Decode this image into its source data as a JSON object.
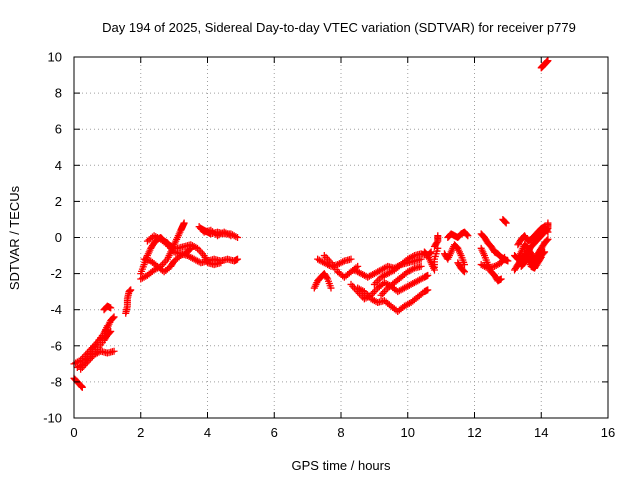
{
  "chart_data": {
    "type": "scatter",
    "title": "Day 194 of 2025, Sidereal Day-to-day VTEC variation (SDTVAR) for receiver p779",
    "xlabel": "GPS time / hours",
    "ylabel": "SDTVAR / TECUs",
    "xlim": [
      0,
      16
    ],
    "ylim": [
      -10,
      10
    ],
    "x_ticks": [
      "0",
      "2",
      "4",
      "6",
      "8",
      "10",
      "12",
      "14",
      "16"
    ],
    "y_ticks": [
      "10",
      "8",
      "6",
      "4",
      "2",
      "0",
      "-2",
      "-4",
      "-6",
      "-8",
      "-10"
    ],
    "grid": true,
    "marker": "plus",
    "color": "#ff0000",
    "traces": [
      [
        [
          0.0,
          -7.8
        ],
        [
          0.1,
          -8.0
        ],
        [
          0.2,
          -8.2
        ],
        [
          0.25,
          -8.3
        ]
      ],
      [
        [
          0.0,
          -7.0
        ],
        [
          0.2,
          -6.8
        ],
        [
          0.4,
          -6.4
        ],
        [
          0.6,
          -6.0
        ],
        [
          0.8,
          -5.6
        ],
        [
          1.0,
          -5.0
        ],
        [
          1.1,
          -4.6
        ],
        [
          1.2,
          -4.4
        ]
      ],
      [
        [
          0.1,
          -7.2
        ],
        [
          0.3,
          -7.0
        ],
        [
          0.5,
          -6.6
        ],
        [
          0.7,
          -6.2
        ],
        [
          0.9,
          -5.7
        ],
        [
          1.0,
          -5.4
        ],
        [
          1.1,
          -5.2
        ]
      ],
      [
        [
          0.2,
          -7.3
        ],
        [
          0.4,
          -6.9
        ],
        [
          0.6,
          -6.5
        ],
        [
          0.8,
          -6.3
        ],
        [
          1.0,
          -6.4
        ],
        [
          1.2,
          -6.3
        ]
      ],
      [
        [
          0.3,
          -6.9
        ],
        [
          0.5,
          -6.3
        ],
        [
          0.7,
          -5.8
        ],
        [
          0.9,
          -5.3
        ],
        [
          1.0,
          -4.9
        ]
      ],
      [
        [
          0.9,
          -4.0
        ],
        [
          1.0,
          -3.8
        ],
        [
          1.1,
          -3.9
        ]
      ],
      [
        [
          1.55,
          -4.2
        ],
        [
          1.6,
          -3.8
        ],
        [
          1.6,
          -3.4
        ],
        [
          1.65,
          -3.0
        ],
        [
          1.7,
          -2.9
        ]
      ],
      [
        [
          2.0,
          -2.0
        ],
        [
          2.1,
          -1.5
        ],
        [
          2.2,
          -1.0
        ],
        [
          2.3,
          -0.6
        ],
        [
          2.4,
          -0.3
        ],
        [
          2.5,
          -0.1
        ],
        [
          2.6,
          0.0
        ],
        [
          2.7,
          -0.2
        ],
        [
          2.8,
          -0.3
        ],
        [
          2.9,
          -0.5
        ],
        [
          3.0,
          -0.6
        ]
      ],
      [
        [
          2.0,
          -2.3
        ],
        [
          2.2,
          -2.1
        ],
        [
          2.4,
          -1.8
        ],
        [
          2.6,
          -1.6
        ],
        [
          2.8,
          -1.2
        ],
        [
          2.9,
          -0.8
        ],
        [
          3.0,
          -0.4
        ],
        [
          3.1,
          0.0
        ],
        [
          3.2,
          0.4
        ],
        [
          3.25,
          0.6
        ],
        [
          3.3,
          0.8
        ]
      ],
      [
        [
          2.1,
          -1.2
        ],
        [
          2.3,
          -1.3
        ],
        [
          2.5,
          -1.6
        ],
        [
          2.7,
          -1.9
        ],
        [
          2.9,
          -1.6
        ],
        [
          3.0,
          -1.3
        ],
        [
          3.2,
          -1.0
        ],
        [
          3.4,
          -0.8
        ],
        [
          3.5,
          -0.6
        ]
      ],
      [
        [
          2.2,
          -0.2
        ],
        [
          2.4,
          0.1
        ],
        [
          2.6,
          -0.1
        ],
        [
          2.8,
          -0.4
        ],
        [
          3.0,
          -0.8
        ],
        [
          3.2,
          -0.9
        ],
        [
          3.4,
          -1.0
        ],
        [
          3.6,
          -1.2
        ],
        [
          3.8,
          -1.4
        ],
        [
          4.0,
          -1.3
        ],
        [
          4.2,
          -1.2
        ],
        [
          4.4,
          -1.3
        ],
        [
          4.6,
          -1.2
        ],
        [
          4.8,
          -1.3
        ],
        [
          4.9,
          -1.2
        ]
      ],
      [
        [
          3.1,
          -0.6
        ],
        [
          3.3,
          -0.5
        ],
        [
          3.5,
          -0.4
        ],
        [
          3.7,
          -0.6
        ],
        [
          3.9,
          -1.0
        ],
        [
          4.0,
          -1.4
        ],
        [
          4.2,
          -1.5
        ],
        [
          4.4,
          -1.4
        ]
      ],
      [
        [
          3.8,
          0.5
        ],
        [
          3.9,
          0.4
        ],
        [
          4.0,
          0.3
        ],
        [
          4.1,
          0.2
        ],
        [
          4.3,
          0.3
        ],
        [
          4.5,
          0.2
        ],
        [
          4.7,
          0.2
        ],
        [
          4.9,
          0.0
        ]
      ],
      [
        [
          3.75,
          0.6
        ],
        [
          3.9,
          0.3
        ],
        [
          4.1,
          0.4
        ],
        [
          4.3,
          0.1
        ],
        [
          4.5,
          0.3
        ],
        [
          4.7,
          0.1
        ]
      ],
      [
        [
          7.2,
          -2.8
        ],
        [
          7.3,
          -2.4
        ],
        [
          7.4,
          -2.2
        ],
        [
          7.5,
          -2.0
        ],
        [
          7.6,
          -2.3
        ],
        [
          7.7,
          -2.8
        ]
      ],
      [
        [
          7.3,
          -1.2
        ],
        [
          7.5,
          -1.4
        ],
        [
          7.7,
          -1.6
        ],
        [
          7.9,
          -1.5
        ],
        [
          8.1,
          -1.3
        ],
        [
          8.3,
          -1.2
        ]
      ],
      [
        [
          7.5,
          -1.0
        ],
        [
          7.7,
          -1.4
        ],
        [
          7.9,
          -1.9
        ],
        [
          8.1,
          -2.2
        ],
        [
          8.3,
          -1.9
        ],
        [
          8.5,
          -1.6
        ]
      ],
      [
        [
          8.3,
          -2.6
        ],
        [
          8.5,
          -3.0
        ],
        [
          8.7,
          -3.4
        ],
        [
          8.9,
          -3.2
        ],
        [
          9.1,
          -2.8
        ],
        [
          9.3,
          -2.5
        ],
        [
          9.5,
          -2.7
        ],
        [
          9.7,
          -3.0
        ],
        [
          9.9,
          -2.8
        ],
        [
          10.1,
          -2.6
        ],
        [
          10.3,
          -2.4
        ],
        [
          10.5,
          -2.2
        ],
        [
          10.6,
          -2.1
        ]
      ],
      [
        [
          8.4,
          -1.8
        ],
        [
          8.6,
          -2.0
        ],
        [
          8.8,
          -2.2
        ],
        [
          9.0,
          -2.0
        ],
        [
          9.2,
          -1.8
        ],
        [
          9.4,
          -1.6
        ],
        [
          9.6,
          -1.7
        ],
        [
          9.8,
          -1.5
        ],
        [
          10.0,
          -1.2
        ],
        [
          10.2,
          -1.0
        ],
        [
          10.4,
          -0.9
        ],
        [
          10.6,
          -1.0
        ],
        [
          10.7,
          -0.8
        ]
      ],
      [
        [
          8.5,
          -2.8
        ],
        [
          8.7,
          -3.0
        ],
        [
          8.9,
          -3.4
        ],
        [
          9.1,
          -3.6
        ],
        [
          9.3,
          -3.5
        ],
        [
          9.5,
          -3.8
        ],
        [
          9.7,
          -4.1
        ],
        [
          9.9,
          -3.8
        ],
        [
          10.1,
          -3.6
        ],
        [
          10.3,
          -3.3
        ],
        [
          10.5,
          -3.0
        ],
        [
          10.6,
          -2.9
        ]
      ],
      [
        [
          9.0,
          -2.6
        ],
        [
          9.2,
          -2.2
        ],
        [
          9.4,
          -2.0
        ],
        [
          9.6,
          -1.8
        ],
        [
          9.8,
          -1.5
        ],
        [
          10.0,
          -1.4
        ],
        [
          10.2,
          -1.3
        ],
        [
          10.4,
          -1.2
        ]
      ],
      [
        [
          9.2,
          -3.2
        ],
        [
          9.4,
          -2.8
        ],
        [
          9.6,
          -2.5
        ],
        [
          9.8,
          -2.2
        ],
        [
          10.0,
          -1.9
        ],
        [
          10.2,
          -1.7
        ],
        [
          10.4,
          -1.6
        ]
      ],
      [
        [
          10.5,
          -0.8
        ],
        [
          10.6,
          -1.0
        ],
        [
          10.7,
          -1.4
        ],
        [
          10.8,
          -1.8
        ],
        [
          10.8,
          -1.2
        ],
        [
          10.9,
          -0.6
        ]
      ],
      [
        [
          10.8,
          -0.5
        ],
        [
          10.9,
          -0.2
        ],
        [
          10.9,
          0.1
        ]
      ],
      [
        [
          11.1,
          -0.9
        ],
        [
          11.2,
          -1.2
        ],
        [
          11.3,
          -0.8
        ],
        [
          11.4,
          -0.4
        ],
        [
          11.5,
          -0.6
        ],
        [
          11.6,
          -1.0
        ],
        [
          11.7,
          -1.5
        ]
      ],
      [
        [
          11.2,
          0.0
        ],
        [
          11.3,
          0.2
        ],
        [
          11.4,
          0.1
        ],
        [
          11.5,
          0.0
        ],
        [
          11.6,
          0.2
        ],
        [
          11.7,
          0.3
        ],
        [
          11.8,
          0.1
        ]
      ],
      [
        [
          11.5,
          -1.4
        ],
        [
          11.6,
          -1.7
        ],
        [
          11.7,
          -1.9
        ]
      ],
      [
        [
          12.2,
          -0.6
        ],
        [
          12.3,
          -1.0
        ],
        [
          12.4,
          -1.5
        ],
        [
          12.5,
          -1.9
        ],
        [
          12.6,
          -2.1
        ],
        [
          12.7,
          -2.4
        ],
        [
          12.8,
          -2.3
        ]
      ],
      [
        [
          12.2,
          0.2
        ],
        [
          12.3,
          0.0
        ],
        [
          12.4,
          -0.3
        ],
        [
          12.5,
          -0.5
        ],
        [
          12.6,
          -0.8
        ],
        [
          12.7,
          -0.9
        ],
        [
          12.8,
          -1.1
        ],
        [
          12.9,
          -1.2
        ],
        [
          13.0,
          -1.3
        ]
      ],
      [
        [
          12.2,
          -1.5
        ],
        [
          12.4,
          -1.7
        ],
        [
          12.6,
          -1.6
        ],
        [
          12.8,
          -1.4
        ],
        [
          12.9,
          -1.1
        ]
      ],
      [
        [
          12.85,
          1.0
        ],
        [
          12.95,
          0.8
        ]
      ],
      [
        [
          13.2,
          -1.8
        ],
        [
          13.3,
          -1.5
        ],
        [
          13.4,
          -1.2
        ],
        [
          13.5,
          -1.0
        ],
        [
          13.6,
          -0.8
        ],
        [
          13.7,
          -0.5
        ],
        [
          13.8,
          -0.3
        ],
        [
          13.9,
          -0.1
        ],
        [
          14.0,
          0.1
        ],
        [
          14.1,
          0.3
        ],
        [
          14.2,
          0.5
        ],
        [
          14.2,
          0.8
        ]
      ],
      [
        [
          13.2,
          -1.0
        ],
        [
          13.3,
          -1.2
        ],
        [
          13.4,
          -0.8
        ],
        [
          13.5,
          -0.4
        ],
        [
          13.6,
          -0.6
        ],
        [
          13.7,
          -0.9
        ],
        [
          13.8,
          -1.2
        ],
        [
          13.9,
          -0.9
        ],
        [
          14.0,
          -0.6
        ],
        [
          14.1,
          -0.3
        ],
        [
          14.2,
          -0.1
        ]
      ],
      [
        [
          13.3,
          -0.4
        ],
        [
          13.4,
          -0.1
        ],
        [
          13.5,
          0.1
        ],
        [
          13.6,
          -0.2
        ],
        [
          13.7,
          -0.1
        ],
        [
          13.8,
          0.1
        ],
        [
          13.9,
          0.3
        ],
        [
          14.0,
          0.5
        ],
        [
          14.1,
          0.6
        ],
        [
          14.2,
          0.3
        ]
      ],
      [
        [
          13.4,
          -1.6
        ],
        [
          13.5,
          -1.4
        ],
        [
          13.6,
          -1.1
        ],
        [
          13.7,
          -1.3
        ],
        [
          13.8,
          -1.5
        ],
        [
          13.9,
          -1.2
        ],
        [
          14.0,
          -1.0
        ],
        [
          14.1,
          -0.8
        ]
      ],
      [
        [
          13.5,
          -0.8
        ],
        [
          13.6,
          -1.2
        ],
        [
          13.7,
          -1.6
        ],
        [
          13.8,
          -1.7
        ],
        [
          13.9,
          -1.4
        ],
        [
          14.0,
          -1.1
        ]
      ],
      [
        [
          14.0,
          9.4
        ],
        [
          14.05,
          9.5
        ],
        [
          14.1,
          9.6
        ],
        [
          14.15,
          9.7
        ],
        [
          14.2,
          9.8
        ]
      ]
    ]
  }
}
